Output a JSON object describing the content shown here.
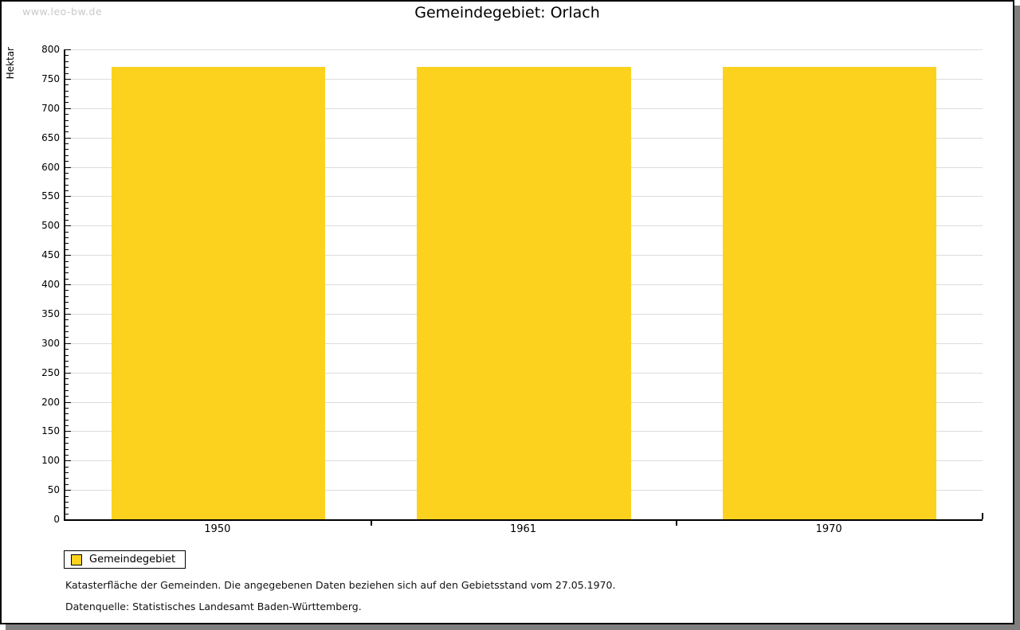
{
  "watermark": "www.leo-bw.de",
  "title": "Gemeindegebiet: Orlach",
  "chart_data": {
    "type": "bar",
    "title": "Gemeindegebiet: Orlach",
    "categories": [
      "1950",
      "1961",
      "1970"
    ],
    "series": [
      {
        "name": "Gemeindegebiet",
        "values": [
          770,
          770,
          770
        ]
      }
    ],
    "xlabel": "",
    "ylabel": "Hektar",
    "ylim": [
      0,
      800
    ],
    "y_major_step": 50,
    "y_minor_step": 10,
    "grid": "horizontal-major",
    "legend_position": "bottom-left",
    "bar_color": "#FCD21E",
    "bar_width_fraction": 0.7
  },
  "legend": {
    "items": [
      {
        "label": "Gemeindegebiet",
        "color": "#FCD21E"
      }
    ]
  },
  "notes": [
    "Katasterfläche der Gemeinden. Die angegebenen Daten beziehen sich auf den Gebietsstand vom 27.05.1970.",
    "Datenquelle: Statistisches Landesamt Baden-Württemberg."
  ],
  "colors": {
    "bar": "#FCD21E",
    "grid": "#DCDCDC",
    "axis": "#000000",
    "watermark_text": "#C9C9C9",
    "shadow": "#7F7F7F"
  }
}
